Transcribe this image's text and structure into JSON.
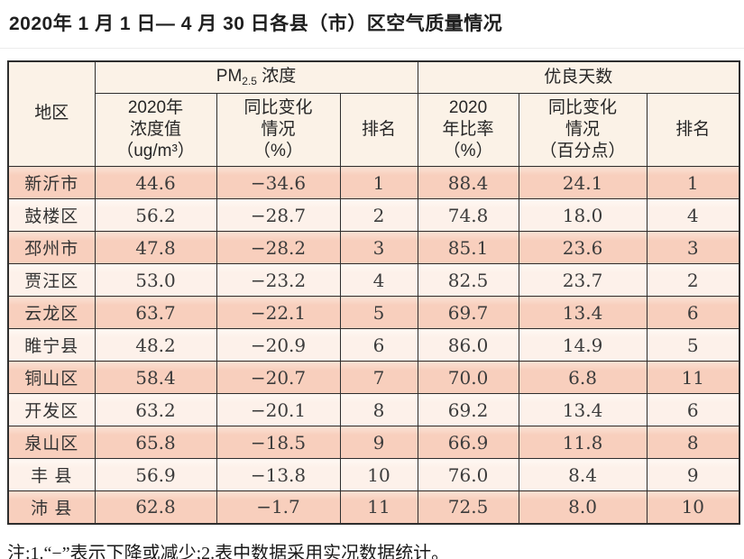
{
  "title": "2020年 1 月 1 日— 4 月 30 日各县（市）区空气质量情况",
  "table": {
    "col_region": "地区",
    "group_pm": {
      "prefix": "PM",
      "sub": "2.5",
      "suffix": " 浓度"
    },
    "group_good": "优良天数",
    "sub_headers": {
      "pm_value": [
        "2020年",
        "浓度值",
        "（ug/m³）"
      ],
      "pm_change": [
        "同比变化",
        "情况",
        "（%）"
      ],
      "pm_rank": "排名",
      "good_rate": [
        "2020",
        "年比率",
        "（%）"
      ],
      "good_change": [
        "同比变化",
        "情况",
        "（百分点）"
      ],
      "good_rank": "排名"
    },
    "rows": [
      {
        "region": "新沂市",
        "pm_value": "44.6",
        "pm_change": "−34.6",
        "pm_rank": "1",
        "good_rate": "88.4",
        "good_change": "24.1",
        "good_rank": "1"
      },
      {
        "region": "鼓楼区",
        "pm_value": "56.2",
        "pm_change": "−28.7",
        "pm_rank": "2",
        "good_rate": "74.8",
        "good_change": "18.0",
        "good_rank": "4"
      },
      {
        "region": "邳州市",
        "pm_value": "47.8",
        "pm_change": "−28.2",
        "pm_rank": "3",
        "good_rate": "85.1",
        "good_change": "23.6",
        "good_rank": "3"
      },
      {
        "region": "贾汪区",
        "pm_value": "53.0",
        "pm_change": "−23.2",
        "pm_rank": "4",
        "good_rate": "82.5",
        "good_change": "23.7",
        "good_rank": "2"
      },
      {
        "region": "云龙区",
        "pm_value": "63.7",
        "pm_change": "−22.1",
        "pm_rank": "5",
        "good_rate": "69.7",
        "good_change": "13.4",
        "good_rank": "6"
      },
      {
        "region": "睢宁县",
        "pm_value": "48.2",
        "pm_change": "−20.9",
        "pm_rank": "6",
        "good_rate": "86.0",
        "good_change": "14.9",
        "good_rank": "5"
      },
      {
        "region": "铜山区",
        "pm_value": "58.4",
        "pm_change": "−20.7",
        "pm_rank": "7",
        "good_rate": "70.0",
        "good_change": "6.8",
        "good_rank": "11"
      },
      {
        "region": "开发区",
        "pm_value": "63.2",
        "pm_change": "−20.1",
        "pm_rank": "8",
        "good_rate": "69.2",
        "good_change": "13.4",
        "good_rank": "6"
      },
      {
        "region": "泉山区",
        "pm_value": "65.8",
        "pm_change": "−18.5",
        "pm_rank": "9",
        "good_rate": "66.9",
        "good_change": "11.8",
        "good_rank": "8"
      },
      {
        "region": "丰 县",
        "pm_value": "56.9",
        "pm_change": "−13.8",
        "pm_rank": "10",
        "good_rate": "76.0",
        "good_change": "8.4",
        "good_rank": "9"
      },
      {
        "region": "沛 县",
        "pm_value": "62.8",
        "pm_change": "−1.7",
        "pm_rank": "11",
        "good_rate": "72.5",
        "good_change": "8.0",
        "good_rank": "10"
      }
    ]
  },
  "footnote": "注:1.“−”表示下降或减少;2.表中数据采用实况数据统计。",
  "colors": {
    "row_odd_bg": "#f8cfbd",
    "row_even_bg": "#fdf1ea",
    "header_bg": "#fbf2e7",
    "grid_border": "#2e2e2e",
    "text": "#3c3c3c"
  }
}
